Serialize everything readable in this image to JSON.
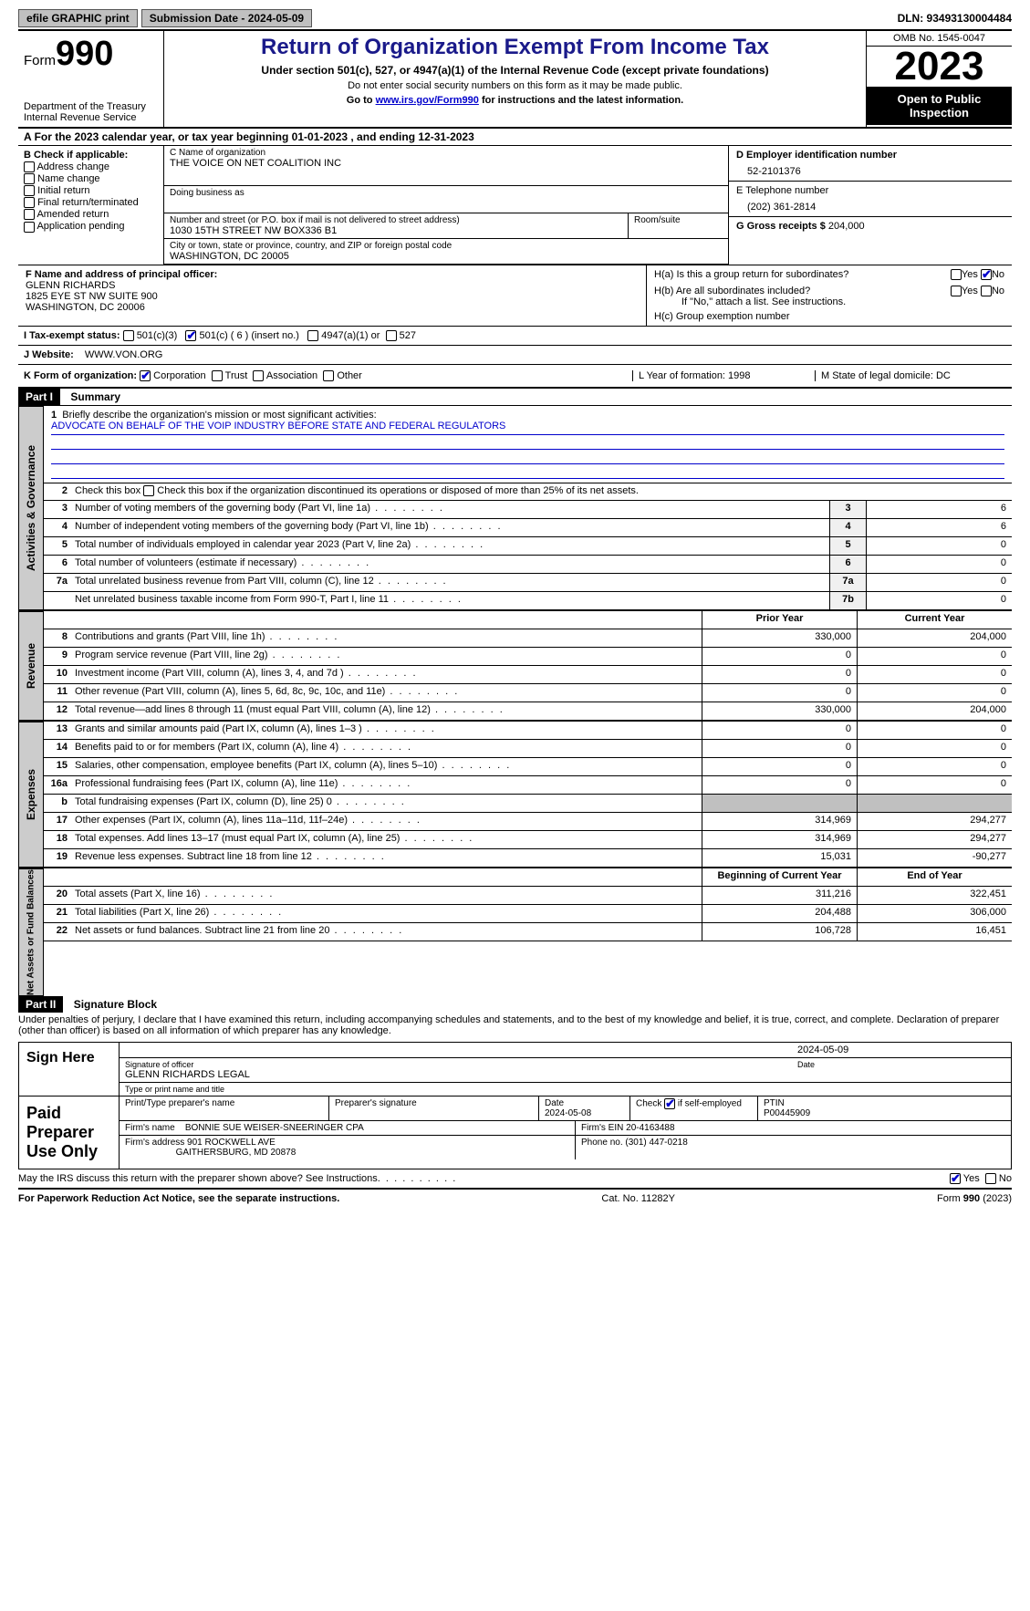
{
  "top": {
    "efile": "efile GRAPHIC print",
    "submission": "Submission Date - 2024-05-09",
    "dln": "DLN: 93493130004484"
  },
  "header": {
    "form_label": "Form",
    "form_num": "990",
    "dept": "Department of the Treasury\nInternal Revenue Service",
    "title": "Return of Organization Exempt From Income Tax",
    "subtitle": "Under section 501(c), 527, or 4947(a)(1) of the Internal Revenue Code (except private foundations)",
    "note1": "Do not enter social security numbers on this form as it may be made public.",
    "note2_prefix": "Go to ",
    "note2_link": "www.irs.gov/Form990",
    "note2_suffix": " for instructions and the latest information.",
    "omb": "OMB No. 1545-0047",
    "year": "2023",
    "open": "Open to Public Inspection"
  },
  "line_a": "For the 2023 calendar year, or tax year beginning 01-01-2023   , and ending 12-31-2023",
  "box_b": {
    "header": "B Check if applicable:",
    "items": [
      "Address change",
      "Name change",
      "Initial return",
      "Final return/terminated",
      "Amended return",
      "Application pending"
    ]
  },
  "box_c": {
    "name_lbl": "C Name of organization",
    "name": "THE VOICE ON NET COALITION INC",
    "dba_lbl": "Doing business as",
    "dba": "",
    "street_lbl": "Number and street (or P.O. box if mail is not delivered to street address)",
    "street": "1030 15TH STREET NW BOX336 B1",
    "room_lbl": "Room/suite",
    "city_lbl": "City or town, state or province, country, and ZIP or foreign postal code",
    "city": "WASHINGTON, DC  20005"
  },
  "box_d": {
    "lbl": "D Employer identification number",
    "val": "52-2101376"
  },
  "box_e": {
    "lbl": "E Telephone number",
    "val": "(202) 361-2814"
  },
  "box_g": {
    "lbl": "G Gross receipts $",
    "val": "204,000"
  },
  "box_f": {
    "lbl": "F  Name and address of principal officer:",
    "name": "GLENN RICHARDS",
    "addr1": "1825 EYE ST NW SUITE 900",
    "addr2": "WASHINGTON, DC  20006"
  },
  "box_h": {
    "a": "H(a)  Is this a group return for subordinates?",
    "b": "H(b)  Are all subordinates included?",
    "b_note": "If \"No,\" attach a list. See instructions.",
    "c": "H(c)  Group exemption number"
  },
  "row_i": {
    "lbl": "I   Tax-exempt status:",
    "opts": [
      "501(c)(3)",
      "501(c) ( 6 ) (insert no.)",
      "4947(a)(1) or",
      "527"
    ]
  },
  "row_j": {
    "lbl": "J   Website:",
    "val": "WWW.VON.ORG"
  },
  "row_k": {
    "lbl": "K Form of organization:",
    "opts": [
      "Corporation",
      "Trust",
      "Association",
      "Other"
    ],
    "l": "L Year of formation: 1998",
    "m": "M State of legal domicile: DC"
  },
  "part1": {
    "header": "Part I",
    "title": "Summary",
    "line1_lbl": "Briefly describe the organization's mission or most significant activities:",
    "line1_val": "ADVOCATE ON BEHALF OF THE VOIP INDUSTRY BEFORE STATE AND FEDERAL REGULATORS",
    "line2": "Check this box      if the organization discontinued its operations or disposed of more than 25% of its net assets.",
    "gov_rows": [
      {
        "n": "3",
        "d": "Number of voting members of the governing body (Part VI, line 1a)",
        "k": "3",
        "v": "6"
      },
      {
        "n": "4",
        "d": "Number of independent voting members of the governing body (Part VI, line 1b)",
        "k": "4",
        "v": "6"
      },
      {
        "n": "5",
        "d": "Total number of individuals employed in calendar year 2023 (Part V, line 2a)",
        "k": "5",
        "v": "0"
      },
      {
        "n": "6",
        "d": "Total number of volunteers (estimate if necessary)",
        "k": "6",
        "v": "0"
      },
      {
        "n": "7a",
        "d": "Total unrelated business revenue from Part VIII, column (C), line 12",
        "k": "7a",
        "v": "0"
      },
      {
        "n": "",
        "d": "Net unrelated business taxable income from Form 990-T, Part I, line 11",
        "k": "7b",
        "v": "0"
      }
    ],
    "col_hdr_prior": "Prior Year",
    "col_hdr_curr": "Current Year",
    "rev_rows": [
      {
        "n": "8",
        "d": "Contributions and grants (Part VIII, line 1h)",
        "p": "330,000",
        "c": "204,000"
      },
      {
        "n": "9",
        "d": "Program service revenue (Part VIII, line 2g)",
        "p": "0",
        "c": "0"
      },
      {
        "n": "10",
        "d": "Investment income (Part VIII, column (A), lines 3, 4, and 7d )",
        "p": "0",
        "c": "0"
      },
      {
        "n": "11",
        "d": "Other revenue (Part VIII, column (A), lines 5, 6d, 8c, 9c, 10c, and 11e)",
        "p": "0",
        "c": "0"
      },
      {
        "n": "12",
        "d": "Total revenue—add lines 8 through 11 (must equal Part VIII, column (A), line 12)",
        "p": "330,000",
        "c": "204,000"
      }
    ],
    "exp_rows": [
      {
        "n": "13",
        "d": "Grants and similar amounts paid (Part IX, column (A), lines 1–3 )",
        "p": "0",
        "c": "0"
      },
      {
        "n": "14",
        "d": "Benefits paid to or for members (Part IX, column (A), line 4)",
        "p": "0",
        "c": "0"
      },
      {
        "n": "15",
        "d": "Salaries, other compensation, employee benefits (Part IX, column (A), lines 5–10)",
        "p": "0",
        "c": "0"
      },
      {
        "n": "16a",
        "d": "Professional fundraising fees (Part IX, column (A), line 11e)",
        "p": "0",
        "c": "0"
      },
      {
        "n": "b",
        "d": "Total fundraising expenses (Part IX, column (D), line 25) 0",
        "p": "",
        "c": "",
        "shaded": true
      },
      {
        "n": "17",
        "d": "Other expenses (Part IX, column (A), lines 11a–11d, 11f–24e)",
        "p": "314,969",
        "c": "294,277"
      },
      {
        "n": "18",
        "d": "Total expenses. Add lines 13–17 (must equal Part IX, column (A), line 25)",
        "p": "314,969",
        "c": "294,277"
      },
      {
        "n": "19",
        "d": "Revenue less expenses. Subtract line 18 from line 12",
        "p": "15,031",
        "c": "-90,277"
      }
    ],
    "na_hdr_prior": "Beginning of Current Year",
    "na_hdr_curr": "End of Year",
    "na_rows": [
      {
        "n": "20",
        "d": "Total assets (Part X, line 16)",
        "p": "311,216",
        "c": "322,451"
      },
      {
        "n": "21",
        "d": "Total liabilities (Part X, line 26)",
        "p": "204,488",
        "c": "306,000"
      },
      {
        "n": "22",
        "d": "Net assets or fund balances. Subtract line 21 from line 20",
        "p": "106,728",
        "c": "16,451"
      }
    ],
    "side_gov": "Activities & Governance",
    "side_rev": "Revenue",
    "side_exp": "Expenses",
    "side_na": "Net Assets or Fund Balances"
  },
  "part2": {
    "header": "Part II",
    "title": "Signature Block",
    "decl": "Under penalties of perjury, I declare that I have examined this return, including accompanying schedules and statements, and to the best of my knowledge and belief, it is true, correct, and complete. Declaration of preparer (other than officer) is based on all information of which preparer has any knowledge.",
    "sign_here": "Sign Here",
    "sig_date": "2024-05-09",
    "sig_lbl": "Signature of officer",
    "sig_name": "GLENN RICHARDS LEGAL",
    "sig_title_lbl": "Type or print name and title",
    "date_lbl": "Date",
    "paid": "Paid Preparer Use Only",
    "prep_name_lbl": "Print/Type preparer's name",
    "prep_sig_lbl": "Preparer's signature",
    "prep_date": "2024-05-08",
    "prep_check": "Check        if self-employed",
    "ptin_lbl": "PTIN",
    "ptin": "P00445909",
    "firm_name_lbl": "Firm's name",
    "firm_name": "BONNIE SUE WEISER-SNEERINGER CPA",
    "firm_ein": "Firm's EIN  20-4163488",
    "firm_addr_lbl": "Firm's address",
    "firm_addr1": "901 ROCKWELL AVE",
    "firm_addr2": "GAITHERSBURG, MD  20878",
    "firm_phone": "Phone no. (301) 447-0218",
    "discuss": "May the IRS discuss this return with the preparer shown above? See Instructions."
  },
  "footer": {
    "left": "For Paperwork Reduction Act Notice, see the separate instructions.",
    "center": "Cat. No. 11282Y",
    "right": "Form 990 (2023)"
  }
}
